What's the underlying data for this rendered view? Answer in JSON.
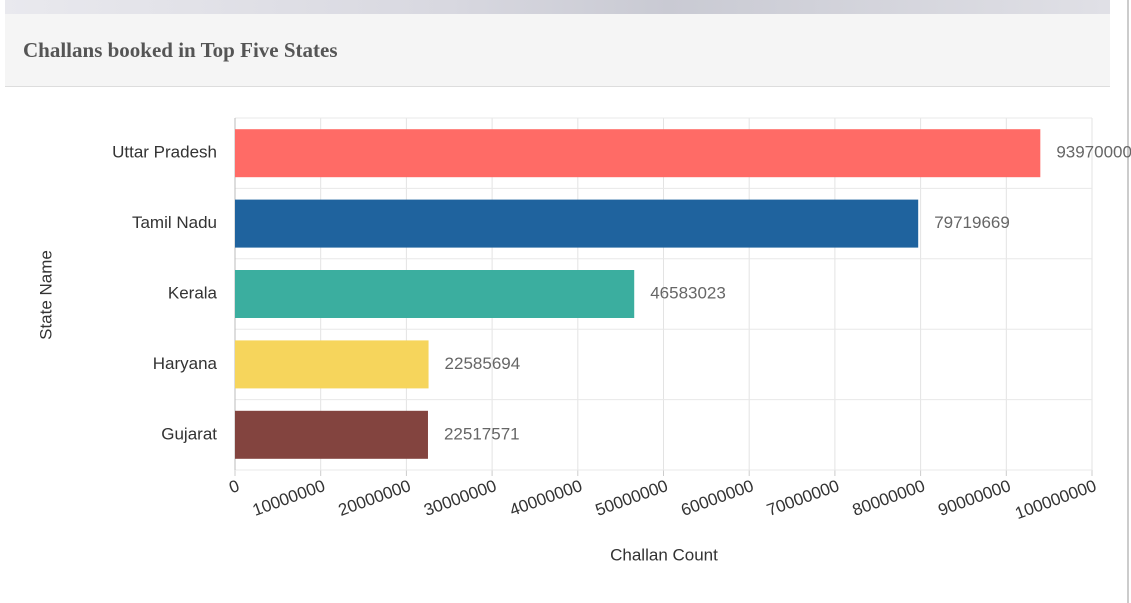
{
  "chart_data": {
    "type": "bar",
    "orientation": "horizontal",
    "title": "Challans booked in Top Five States",
    "categories": [
      "Uttar Pradesh",
      "Tamil Nadu",
      "Kerala",
      "Haryana",
      "Gujarat"
    ],
    "values": [
      93970000,
      79719669,
      46583023,
      22585694,
      22517571
    ],
    "colors": [
      "#ff6b66",
      "#1f639e",
      "#3bae9f",
      "#f6d55c",
      "#83443f"
    ],
    "xlabel": "Challan Count",
    "ylabel": "State Name",
    "xlim": [
      0,
      100000000
    ],
    "xticks": [
      0,
      10000000,
      20000000,
      30000000,
      40000000,
      50000000,
      60000000,
      70000000,
      80000000,
      90000000,
      100000000
    ],
    "grid": true
  }
}
